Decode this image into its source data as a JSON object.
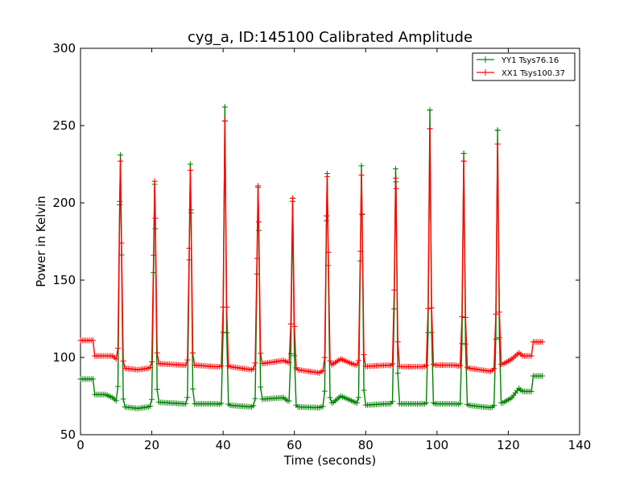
{
  "chart_data": {
    "type": "line",
    "title": "cyg_a, ID:145100 Calibrated Amplitude",
    "xlabel": "Time (seconds)",
    "ylabel": "Power in Kelvin",
    "xlim": [
      0,
      140
    ],
    "ylim": [
      50,
      300
    ],
    "xticks": [
      0,
      20,
      40,
      60,
      80,
      100,
      120,
      140
    ],
    "yticks": [
      50,
      100,
      150,
      200,
      250,
      300
    ],
    "grid": false,
    "legend_position": "top-right",
    "colors": {
      "yy1": "#008000",
      "xx1": "#ff0000"
    },
    "series": [
      {
        "name": "YY1 Tsys76.16",
        "color": "#008000",
        "marker": "+",
        "baseline_segments": [
          [
            0,
            86
          ],
          [
            3.5,
            86
          ],
          [
            4,
            76
          ],
          [
            6.8,
            76
          ],
          [
            7,
            76
          ],
          [
            9,
            74
          ],
          [
            10,
            72
          ],
          [
            12.5,
            68
          ],
          [
            16,
            67
          ],
          [
            19,
            68
          ],
          [
            22,
            71
          ],
          [
            29,
            70
          ],
          [
            32,
            70
          ],
          [
            38,
            70
          ],
          [
            42,
            69
          ],
          [
            48,
            68
          ],
          [
            51,
            73
          ],
          [
            57,
            74
          ],
          [
            58,
            72
          ],
          [
            61,
            68
          ],
          [
            67,
            67.5
          ],
          [
            71,
            71
          ],
          [
            73,
            75
          ],
          [
            76,
            72
          ],
          [
            79,
            69
          ],
          [
            86,
            70
          ],
          [
            90,
            70
          ],
          [
            96,
            70
          ],
          [
            99,
            70
          ],
          [
            105,
            70
          ],
          [
            109,
            69
          ],
          [
            115,
            67.5
          ],
          [
            118,
            70
          ],
          [
            121,
            74
          ],
          [
            123,
            80
          ],
          [
            124,
            78
          ],
          [
            126.5,
            78
          ],
          [
            127,
            88
          ],
          [
            129.5,
            88
          ]
        ],
        "peaks": [
          [
            11.2,
            231
          ],
          [
            20.8,
            212
          ],
          [
            30.8,
            225
          ],
          [
            40.5,
            262
          ],
          [
            49.8,
            210
          ],
          [
            59.5,
            201
          ],
          [
            69.2,
            219
          ],
          [
            78.8,
            224
          ],
          [
            88.4,
            222
          ],
          [
            98,
            260
          ],
          [
            107.5,
            232
          ],
          [
            117,
            247
          ]
        ]
      },
      {
        "name": "XX1 Tsys100.37",
        "color": "#ff0000",
        "marker": "+",
        "baseline_segments": [
          [
            0,
            111
          ],
          [
            3.5,
            111
          ],
          [
            4,
            101
          ],
          [
            6.8,
            101
          ],
          [
            9,
            101
          ],
          [
            10,
            99
          ],
          [
            12.5,
            93
          ],
          [
            16,
            92
          ],
          [
            19,
            93
          ],
          [
            22,
            96
          ],
          [
            29,
            95
          ],
          [
            32,
            95
          ],
          [
            38,
            94
          ],
          [
            42,
            94
          ],
          [
            48,
            92
          ],
          [
            51,
            96
          ],
          [
            57,
            98
          ],
          [
            58,
            97
          ],
          [
            61,
            92
          ],
          [
            67,
            90
          ],
          [
            71,
            96
          ],
          [
            73,
            99
          ],
          [
            76,
            96
          ],
          [
            79,
            94
          ],
          [
            86,
            95
          ],
          [
            90,
            94
          ],
          [
            96,
            94
          ],
          [
            99,
            95
          ],
          [
            105,
            95
          ],
          [
            109,
            93
          ],
          [
            115,
            91
          ],
          [
            118,
            95
          ],
          [
            121,
            99
          ],
          [
            123,
            103
          ],
          [
            124,
            101
          ],
          [
            126.5,
            101
          ],
          [
            127,
            110
          ],
          [
            129.5,
            110
          ]
        ],
        "peaks": [
          [
            11.2,
            227
          ],
          [
            20.8,
            214
          ],
          [
            30.8,
            221
          ],
          [
            40.5,
            253
          ],
          [
            49.8,
            211
          ],
          [
            59.5,
            203
          ],
          [
            69.2,
            217
          ],
          [
            78.8,
            218
          ],
          [
            88.4,
            216
          ],
          [
            98,
            248
          ],
          [
            107.5,
            227
          ],
          [
            117,
            238
          ]
        ]
      }
    ]
  }
}
